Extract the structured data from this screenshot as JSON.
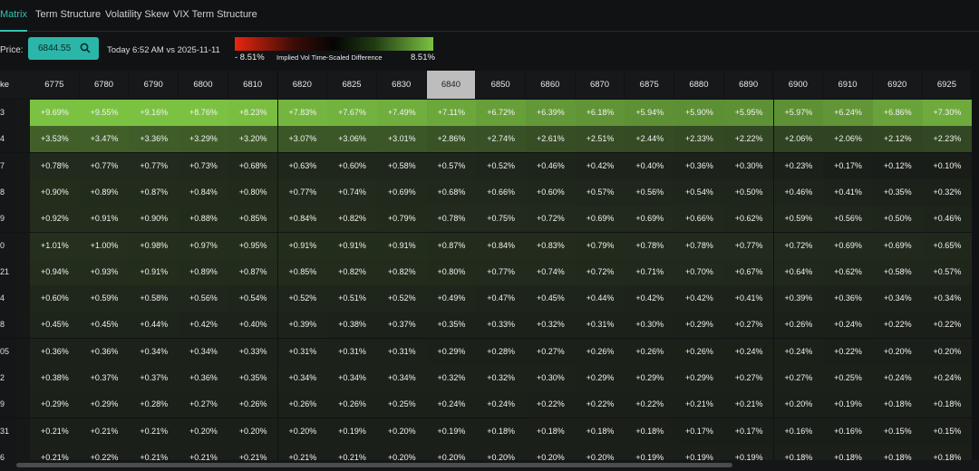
{
  "tabs": [
    "Matrix",
    "Term Structure",
    "Volatility Skew",
    "VIX Term Structure"
  ],
  "toolbar": {
    "price_label": "Price:",
    "price": "6844.55",
    "timestamp": "Today 6:52 AM vs 2025-11-11",
    "legend": {
      "min": "- 8.51%",
      "title": "Implied Vol Time-Scaled Difference",
      "max": "8.51%"
    }
  },
  "matrix": {
    "corner": "ke",
    "columns": [
      "6775",
      "6780",
      "6790",
      "6800",
      "6810",
      "6820",
      "6825",
      "6830",
      "6840",
      "6850",
      "6860",
      "6870",
      "6875",
      "6880",
      "6890",
      "6900",
      "6910",
      "6920",
      "6925"
    ],
    "rows": [
      {
        "label": "3",
        "cells": [
          "+9.69%",
          "+9.55%",
          "+9.16%",
          "+8.76%",
          "+8.23%",
          "+7.83%",
          "+7.67%",
          "+7.49%",
          "+7.11%",
          "+6.72%",
          "+6.39%",
          "+6.18%",
          "+5.94%",
          "+5.90%",
          "+5.95%",
          "+5.97%",
          "+6.24%",
          "+6.86%",
          "+7.30%"
        ]
      },
      {
        "label": "4",
        "cells": [
          "+3.53%",
          "+3.47%",
          "+3.36%",
          "+3.29%",
          "+3.20%",
          "+3.07%",
          "+3.06%",
          "+3.01%",
          "+2.86%",
          "+2.74%",
          "+2.61%",
          "+2.51%",
          "+2.44%",
          "+2.33%",
          "+2.22%",
          "+2.06%",
          "+2.06%",
          "+2.12%",
          "+2.23%"
        ]
      },
      {
        "label": "7",
        "cells": [
          "+0.78%",
          "+0.77%",
          "+0.77%",
          "+0.73%",
          "+0.68%",
          "+0.63%",
          "+0.60%",
          "+0.58%",
          "+0.57%",
          "+0.52%",
          "+0.46%",
          "+0.42%",
          "+0.40%",
          "+0.36%",
          "+0.30%",
          "+0.23%",
          "+0.17%",
          "+0.12%",
          "+0.10%"
        ]
      },
      {
        "label": "8",
        "cells": [
          "+0.90%",
          "+0.89%",
          "+0.87%",
          "+0.84%",
          "+0.80%",
          "+0.77%",
          "+0.74%",
          "+0.69%",
          "+0.68%",
          "+0.66%",
          "+0.60%",
          "+0.57%",
          "+0.56%",
          "+0.54%",
          "+0.50%",
          "+0.46%",
          "+0.41%",
          "+0.35%",
          "+0.32%"
        ]
      },
      {
        "label": "9",
        "cells": [
          "+0.92%",
          "+0.91%",
          "+0.90%",
          "+0.88%",
          "+0.85%",
          "+0.84%",
          "+0.82%",
          "+0.79%",
          "+0.78%",
          "+0.75%",
          "+0.72%",
          "+0.69%",
          "+0.69%",
          "+0.66%",
          "+0.62%",
          "+0.59%",
          "+0.56%",
          "+0.50%",
          "+0.46%"
        ]
      },
      {
        "label": "0",
        "cells": [
          "+1.01%",
          "+1.00%",
          "+0.98%",
          "+0.97%",
          "+0.95%",
          "+0.91%",
          "+0.91%",
          "+0.91%",
          "+0.87%",
          "+0.84%",
          "+0.83%",
          "+0.79%",
          "+0.78%",
          "+0.78%",
          "+0.77%",
          "+0.72%",
          "+0.69%",
          "+0.69%",
          "+0.65%"
        ]
      },
      {
        "label": "21",
        "cells": [
          "+0.94%",
          "+0.93%",
          "+0.91%",
          "+0.89%",
          "+0.87%",
          "+0.85%",
          "+0.82%",
          "+0.82%",
          "+0.80%",
          "+0.77%",
          "+0.74%",
          "+0.72%",
          "+0.71%",
          "+0.70%",
          "+0.67%",
          "+0.64%",
          "+0.62%",
          "+0.58%",
          "+0.57%"
        ]
      },
      {
        "label": "4",
        "cells": [
          "+0.60%",
          "+0.59%",
          "+0.58%",
          "+0.56%",
          "+0.54%",
          "+0.52%",
          "+0.51%",
          "+0.52%",
          "+0.49%",
          "+0.47%",
          "+0.45%",
          "+0.44%",
          "+0.42%",
          "+0.42%",
          "+0.41%",
          "+0.39%",
          "+0.36%",
          "+0.34%",
          "+0.34%"
        ]
      },
      {
        "label": "8",
        "cells": [
          "+0.45%",
          "+0.45%",
          "+0.44%",
          "+0.42%",
          "+0.40%",
          "+0.39%",
          "+0.38%",
          "+0.37%",
          "+0.35%",
          "+0.33%",
          "+0.32%",
          "+0.31%",
          "+0.30%",
          "+0.29%",
          "+0.27%",
          "+0.26%",
          "+0.24%",
          "+0.22%",
          "+0.22%"
        ]
      },
      {
        "label": "05",
        "cells": [
          "+0.36%",
          "+0.36%",
          "+0.34%",
          "+0.34%",
          "+0.33%",
          "+0.31%",
          "+0.31%",
          "+0.31%",
          "+0.29%",
          "+0.28%",
          "+0.27%",
          "+0.26%",
          "+0.26%",
          "+0.26%",
          "+0.24%",
          "+0.24%",
          "+0.22%",
          "+0.20%",
          "+0.20%"
        ]
      },
      {
        "label": "2",
        "cells": [
          "+0.38%",
          "+0.37%",
          "+0.37%",
          "+0.36%",
          "+0.35%",
          "+0.34%",
          "+0.34%",
          "+0.34%",
          "+0.32%",
          "+0.32%",
          "+0.30%",
          "+0.29%",
          "+0.29%",
          "+0.29%",
          "+0.27%",
          "+0.27%",
          "+0.25%",
          "+0.24%",
          "+0.24%"
        ]
      },
      {
        "label": "9",
        "cells": [
          "+0.29%",
          "+0.29%",
          "+0.28%",
          "+0.27%",
          "+0.26%",
          "+0.26%",
          "+0.26%",
          "+0.25%",
          "+0.24%",
          "+0.24%",
          "+0.22%",
          "+0.22%",
          "+0.22%",
          "+0.21%",
          "+0.21%",
          "+0.20%",
          "+0.19%",
          "+0.18%",
          "+0.18%"
        ]
      },
      {
        "label": "31",
        "cells": [
          "+0.21%",
          "+0.21%",
          "+0.21%",
          "+0.20%",
          "+0.20%",
          "+0.20%",
          "+0.19%",
          "+0.20%",
          "+0.19%",
          "+0.18%",
          "+0.18%",
          "+0.18%",
          "+0.18%",
          "+0.17%",
          "+0.17%",
          "+0.16%",
          "+0.16%",
          "+0.15%",
          "+0.15%"
        ]
      },
      {
        "label": "6",
        "cells": [
          "+0.21%",
          "+0.22%",
          "+0.21%",
          "+0.21%",
          "+0.21%",
          "+0.21%",
          "+0.21%",
          "+0.20%",
          "+0.20%",
          "+0.20%",
          "+0.20%",
          "+0.20%",
          "+0.19%",
          "+0.19%",
          "+0.19%",
          "+0.18%",
          "+0.18%",
          "+0.18%",
          "+0.18%"
        ]
      }
    ]
  }
}
